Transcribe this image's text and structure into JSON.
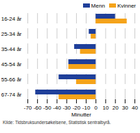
{
  "chart_data": {
    "type": "bar",
    "orientation": "horizontal",
    "categories": [
      "16-24 år",
      "25-34 år",
      "35-44 år",
      "45-54 år",
      "55-66 år",
      "67-74 år"
    ],
    "series": [
      {
        "name": "Menn",
        "color": "#1f3f9a",
        "values": [
          20,
          -7,
          -22,
          -28,
          -38,
          -62
        ]
      },
      {
        "name": "Kvinner",
        "color": "#f5a31a",
        "values": [
          32,
          -5,
          -16,
          -28,
          -20,
          -38
        ]
      }
    ],
    "x_label": "Minutter",
    "xlim": [
      -70,
      40
    ],
    "xticks": [
      -70,
      -60,
      -50,
      -40,
      -30,
      -20,
      -10,
      0,
      10,
      20,
      30,
      40
    ],
    "grid": true,
    "legend": "top-right",
    "caption": "Kilde: Tidsbruksundersøkelsene, Statistisk sentralbyrå."
  }
}
